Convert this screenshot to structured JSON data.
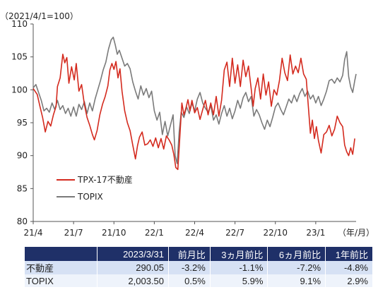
{
  "chart_data": {
    "type": "line",
    "title": "",
    "index_note": "（2021/4/1=100）",
    "xlabel": "（年/月）",
    "ylabel": "",
    "ylim": [
      80,
      110
    ],
    "yticks": [
      80,
      85,
      90,
      95,
      100,
      105,
      110
    ],
    "x_tick_labels": [
      "21/4",
      "21/7",
      "21/10",
      "22/1",
      "22/4",
      "22/7",
      "22/10",
      "23/1"
    ],
    "x_tick_months": [
      0,
      3,
      6,
      9,
      12,
      15,
      18,
      21
    ],
    "x_end_month": 24,
    "grid": false,
    "legend_position": "lower-left",
    "series": [
      {
        "name": "TPX-17不動産",
        "color": "#d42a1e",
        "points": [
          [
            0.0,
            100.2
          ],
          [
            0.3,
            99.3
          ],
          [
            0.5,
            97.5
          ],
          [
            0.7,
            95.8
          ],
          [
            0.9,
            93.6
          ],
          [
            1.1,
            95.2
          ],
          [
            1.3,
            94.5
          ],
          [
            1.5,
            96.2
          ],
          [
            1.7,
            97.5
          ],
          [
            1.8,
            100.5
          ],
          [
            2.0,
            101.8
          ],
          [
            2.2,
            105.4
          ],
          [
            2.35,
            104.1
          ],
          [
            2.5,
            104.9
          ],
          [
            2.65,
            101.0
          ],
          [
            2.85,
            103.5
          ],
          [
            3.05,
            101.5
          ],
          [
            3.2,
            104.0
          ],
          [
            3.4,
            99.8
          ],
          [
            3.6,
            100.8
          ],
          [
            3.8,
            97.8
          ],
          [
            4.0,
            95.8
          ],
          [
            4.2,
            94.6
          ],
          [
            4.4,
            93.2
          ],
          [
            4.55,
            92.4
          ],
          [
            4.75,
            93.8
          ],
          [
            4.95,
            96.2
          ],
          [
            5.15,
            97.8
          ],
          [
            5.35,
            99.0
          ],
          [
            5.55,
            100.6
          ],
          [
            5.7,
            103.0
          ],
          [
            5.85,
            104.0
          ],
          [
            6.0,
            103.1
          ],
          [
            6.15,
            104.3
          ],
          [
            6.3,
            101.8
          ],
          [
            6.45,
            103.2
          ],
          [
            6.6,
            99.8
          ],
          [
            6.8,
            96.8
          ],
          [
            7.0,
            95.0
          ],
          [
            7.2,
            93.8
          ],
          [
            7.4,
            91.6
          ],
          [
            7.6,
            89.5
          ],
          [
            7.75,
            91.5
          ],
          [
            7.9,
            92.8
          ],
          [
            8.1,
            93.6
          ],
          [
            8.3,
            91.6
          ],
          [
            8.5,
            91.8
          ],
          [
            8.7,
            92.4
          ],
          [
            8.9,
            91.4
          ],
          [
            9.1,
            92.7
          ],
          [
            9.3,
            91.2
          ],
          [
            9.5,
            92.6
          ],
          [
            9.7,
            91.0
          ],
          [
            9.9,
            93.0
          ],
          [
            10.1,
            92.4
          ],
          [
            10.3,
            91.6
          ],
          [
            10.45,
            90.2
          ],
          [
            10.6,
            88.2
          ],
          [
            10.75,
            87.9
          ],
          [
            10.9,
            93.0
          ],
          [
            11.05,
            98.0
          ],
          [
            11.2,
            96.2
          ],
          [
            11.35,
            97.2
          ],
          [
            11.5,
            98.5
          ],
          [
            11.65,
            96.8
          ],
          [
            11.8,
            98.4
          ],
          [
            12.0,
            96.5
          ],
          [
            12.2,
            97.3
          ],
          [
            12.4,
            95.5
          ],
          [
            12.6,
            97.0
          ],
          [
            12.8,
            98.4
          ],
          [
            13.0,
            96.2
          ],
          [
            13.2,
            98.0
          ],
          [
            13.4,
            96.2
          ],
          [
            13.6,
            99.0
          ],
          [
            13.8,
            96.0
          ],
          [
            14.0,
            98.4
          ],
          [
            14.2,
            103.0
          ],
          [
            14.4,
            104.2
          ],
          [
            14.6,
            100.5
          ],
          [
            14.8,
            104.8
          ],
          [
            15.0,
            101.0
          ],
          [
            15.2,
            103.8
          ],
          [
            15.4,
            100.5
          ],
          [
            15.6,
            104.5
          ],
          [
            15.8,
            102.0
          ],
          [
            16.0,
            103.6
          ],
          [
            16.2,
            100.2
          ],
          [
            16.35,
            97.5
          ],
          [
            16.5,
            100.2
          ],
          [
            16.7,
            101.8
          ],
          [
            16.9,
            98.6
          ],
          [
            17.1,
            102.4
          ],
          [
            17.3,
            99.2
          ],
          [
            17.5,
            101.2
          ],
          [
            17.7,
            97.5
          ],
          [
            17.9,
            100.0
          ],
          [
            18.1,
            99.2
          ],
          [
            18.3,
            101.4
          ],
          [
            18.5,
            104.8
          ],
          [
            18.7,
            102.6
          ],
          [
            18.9,
            101.4
          ],
          [
            19.1,
            105.3
          ],
          [
            19.3,
            102.4
          ],
          [
            19.5,
            103.6
          ],
          [
            19.7,
            102.6
          ],
          [
            19.9,
            104.8
          ],
          [
            20.1,
            102.4
          ],
          [
            20.3,
            101.6
          ],
          [
            20.45,
            97.5
          ],
          [
            20.6,
            93.4
          ],
          [
            20.75,
            95.4
          ],
          [
            20.9,
            92.6
          ],
          [
            21.05,
            94.4
          ],
          [
            21.2,
            92.3
          ],
          [
            21.4,
            90.4
          ],
          [
            21.6,
            93.2
          ],
          [
            21.8,
            93.6
          ],
          [
            22.0,
            94.6
          ],
          [
            22.2,
            93.0
          ],
          [
            22.4,
            94.0
          ],
          [
            22.6,
            96.0
          ],
          [
            22.8,
            95.0
          ],
          [
            23.0,
            94.4
          ],
          [
            23.15,
            91.6
          ],
          [
            23.3,
            90.6
          ],
          [
            23.45,
            90.0
          ],
          [
            23.6,
            91.2
          ],
          [
            23.75,
            90.2
          ],
          [
            23.9,
            92.6
          ]
        ]
      },
      {
        "name": "TOPIX",
        "color": "#7a7a7a",
        "points": [
          [
            0.0,
            100.3
          ],
          [
            0.2,
            100.8
          ],
          [
            0.4,
            99.6
          ],
          [
            0.6,
            98.4
          ],
          [
            0.8,
            96.8
          ],
          [
            1.0,
            97.2
          ],
          [
            1.2,
            96.6
          ],
          [
            1.4,
            98.0
          ],
          [
            1.6,
            97.0
          ],
          [
            1.8,
            98.4
          ],
          [
            2.0,
            97.0
          ],
          [
            2.2,
            97.6
          ],
          [
            2.4,
            96.4
          ],
          [
            2.6,
            97.2
          ],
          [
            2.8,
            96.0
          ],
          [
            3.0,
            97.4
          ],
          [
            3.2,
            96.0
          ],
          [
            3.4,
            97.8
          ],
          [
            3.6,
            97.0
          ],
          [
            3.8,
            98.2
          ],
          [
            4.0,
            96.4
          ],
          [
            4.2,
            98.0
          ],
          [
            4.4,
            96.8
          ],
          [
            4.6,
            98.6
          ],
          [
            4.8,
            100.0
          ],
          [
            5.0,
            101.4
          ],
          [
            5.2,
            103.0
          ],
          [
            5.4,
            104.2
          ],
          [
            5.6,
            106.2
          ],
          [
            5.8,
            107.6
          ],
          [
            5.95,
            108.0
          ],
          [
            6.1,
            106.8
          ],
          [
            6.25,
            105.4
          ],
          [
            6.4,
            106.0
          ],
          [
            6.6,
            104.8
          ],
          [
            6.8,
            103.6
          ],
          [
            7.0,
            104.0
          ],
          [
            7.2,
            103.2
          ],
          [
            7.4,
            101.2
          ],
          [
            7.6,
            99.8
          ],
          [
            7.8,
            98.6
          ],
          [
            8.0,
            100.6
          ],
          [
            8.2,
            99.2
          ],
          [
            8.4,
            100.2
          ],
          [
            8.6,
            98.8
          ],
          [
            8.8,
            99.8
          ],
          [
            9.0,
            96.8
          ],
          [
            9.2,
            95.4
          ],
          [
            9.4,
            96.6
          ],
          [
            9.6,
            93.2
          ],
          [
            9.8,
            95.2
          ],
          [
            10.0,
            93.0
          ],
          [
            10.2,
            94.6
          ],
          [
            10.4,
            96.2
          ],
          [
            10.55,
            90.0
          ],
          [
            10.7,
            88.8
          ],
          [
            10.85,
            93.6
          ],
          [
            11.0,
            96.6
          ],
          [
            11.2,
            95.8
          ],
          [
            11.4,
            97.4
          ],
          [
            11.6,
            96.4
          ],
          [
            11.8,
            98.0
          ],
          [
            12.0,
            96.8
          ],
          [
            12.2,
            98.6
          ],
          [
            12.4,
            99.6
          ],
          [
            12.6,
            98.0
          ],
          [
            12.8,
            97.2
          ],
          [
            13.0,
            96.6
          ],
          [
            13.2,
            97.6
          ],
          [
            13.4,
            95.4
          ],
          [
            13.6,
            96.2
          ],
          [
            13.8,
            94.8
          ],
          [
            14.0,
            96.4
          ],
          [
            14.2,
            97.6
          ],
          [
            14.4,
            96.0
          ],
          [
            14.6,
            97.2
          ],
          [
            14.8,
            95.6
          ],
          [
            15.0,
            96.8
          ],
          [
            15.2,
            98.4
          ],
          [
            15.4,
            97.2
          ],
          [
            15.6,
            98.8
          ],
          [
            15.8,
            99.6
          ],
          [
            16.0,
            98.2
          ],
          [
            16.2,
            99.0
          ],
          [
            16.4,
            96.0
          ],
          [
            16.6,
            97.0
          ],
          [
            16.8,
            96.2
          ],
          [
            17.0,
            95.0
          ],
          [
            17.2,
            94.0
          ],
          [
            17.4,
            95.4
          ],
          [
            17.6,
            94.4
          ],
          [
            17.8,
            95.8
          ],
          [
            18.0,
            97.4
          ],
          [
            18.2,
            98.0
          ],
          [
            18.4,
            97.0
          ],
          [
            18.6,
            96.2
          ],
          [
            18.8,
            97.4
          ],
          [
            19.0,
            98.6
          ],
          [
            19.2,
            98.0
          ],
          [
            19.4,
            99.2
          ],
          [
            19.6,
            98.2
          ],
          [
            19.8,
            99.4
          ],
          [
            20.0,
            100.2
          ],
          [
            20.2,
            99.0
          ],
          [
            20.4,
            99.8
          ],
          [
            20.6,
            98.6
          ],
          [
            20.8,
            99.2
          ],
          [
            21.0,
            98.0
          ],
          [
            21.2,
            99.0
          ],
          [
            21.4,
            97.6
          ],
          [
            21.6,
            98.6
          ],
          [
            21.8,
            99.8
          ],
          [
            22.0,
            101.4
          ],
          [
            22.2,
            101.6
          ],
          [
            22.4,
            101.0
          ],
          [
            22.6,
            101.8
          ],
          [
            22.8,
            101.2
          ],
          [
            23.0,
            102.2
          ],
          [
            23.15,
            104.6
          ],
          [
            23.3,
            105.8
          ],
          [
            23.45,
            102.0
          ],
          [
            23.6,
            100.4
          ],
          [
            23.75,
            99.6
          ],
          [
            23.9,
            101.4
          ],
          [
            24.0,
            102.4
          ]
        ]
      }
    ]
  },
  "table": {
    "headers": [
      "",
      "2023/3/31",
      "前月比",
      "3ヵ月前比",
      "6ヵ月前比",
      "1年前比"
    ],
    "rows": [
      {
        "name": "不動産",
        "value": "290.05",
        "m1": "-3.2%",
        "m3": "-1.1%",
        "m6": "-7.2%",
        "y1": "-4.8%"
      },
      {
        "name": "TOPIX",
        "value": "2,003.50",
        "m1": "0.5%",
        "m3": "5.9%",
        "m6": "9.1%",
        "y1": "2.9%"
      }
    ]
  }
}
